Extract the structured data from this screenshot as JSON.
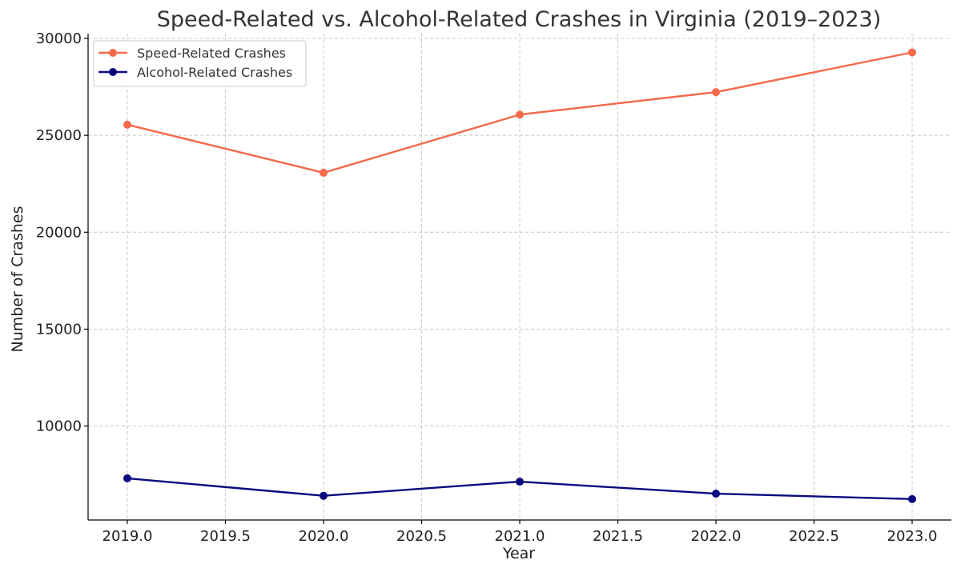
{
  "chart_data": {
    "type": "line",
    "title": "Speed-Related vs. Alcohol-Related Crashes in Virginia (2019–2023)",
    "xlabel": "Year",
    "ylabel": "Number of Crashes",
    "x": [
      2019,
      2020,
      2021,
      2022,
      2023
    ],
    "xlim": [
      2018.8,
      2023.2
    ],
    "ylim": [
      5150,
      30250
    ],
    "xticks": [
      2019.0,
      2019.5,
      2020.0,
      2020.5,
      2021.0,
      2021.5,
      2022.0,
      2022.5,
      2023.0
    ],
    "xtick_labels": [
      "2019.0",
      "2019.5",
      "2020.0",
      "2020.5",
      "2021.0",
      "2021.5",
      "2022.0",
      "2022.5",
      "2023.0"
    ],
    "yticks": [
      10000,
      15000,
      20000,
      25000,
      30000
    ],
    "ytick_labels": [
      "10000",
      "15000",
      "20000",
      "25000",
      "30000"
    ],
    "grid": true,
    "legend_position": "top-left",
    "series": [
      {
        "name": "Speed-Related Crashes",
        "color": "#f4694a",
        "values": [
          25550,
          23070,
          26070,
          27230,
          29280
        ]
      },
      {
        "name": "Alcohol-Related Crashes",
        "color": "#0a0a80",
        "values": [
          7300,
          6400,
          7130,
          6510,
          6230
        ]
      }
    ]
  }
}
